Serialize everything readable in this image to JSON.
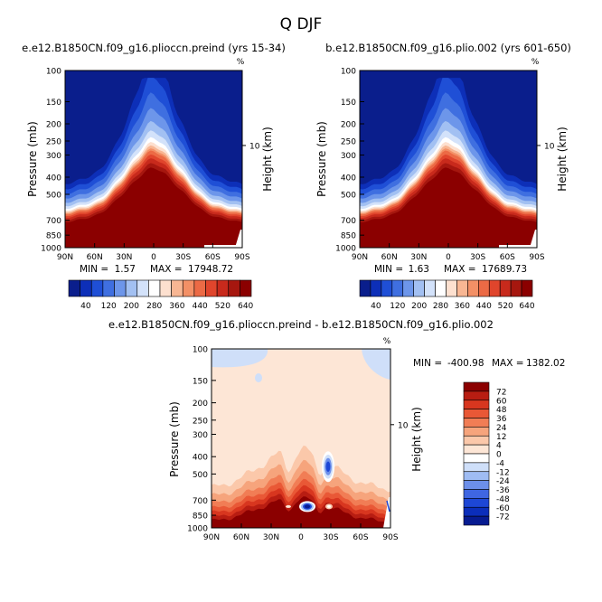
{
  "figure": {
    "title": "Q DJF"
  },
  "palette": {
    "full": [
      "#0a1e8c",
      "#0d2fb8",
      "#1f4fd6",
      "#3f6fe0",
      "#6d96ea",
      "#a2c0f2",
      "#d3e2fa",
      "#ffffff",
      "#fde0cf",
      "#f8b693",
      "#f39066",
      "#ec6a45",
      "#e0452c",
      "#c82a1c",
      "#a6170f",
      "#8b0000"
    ],
    "diff": [
      "#071b91",
      "#0b2ebb",
      "#1d47d6",
      "#3f66e2",
      "#6c8fea",
      "#9fbcf3",
      "#cfdff9",
      "#ffffff",
      "#fde6d6",
      "#fbc8aa",
      "#f6a47c",
      "#f17d55",
      "#e95836",
      "#d8361f",
      "#b81d12",
      "#8b0000"
    ]
  },
  "chart_data": [
    {
      "type": "heatmap",
      "title": "e.e12.B1850CN.f09_g16.plioccn.preind (yrs 15-34)",
      "ylabel": "Pressure (mb)",
      "y2label": "Height (km)",
      "y2_unit": "%",
      "x_ticks": [
        "90N",
        "60N",
        "30N",
        "0",
        "30S",
        "60S",
        "90S"
      ],
      "y_ticks": [
        100,
        150,
        200,
        250,
        300,
        400,
        500,
        700,
        850,
        1000
      ],
      "y2_ticks": [
        10
      ],
      "ylim": [
        1000,
        100
      ],
      "y_scale": "log",
      "min_label": "MIN =",
      "min_value": "1.57",
      "max_label": "MAX =",
      "max_value": "17948.72",
      "colorbar_labels": [
        "40",
        "120",
        "200",
        "280",
        "360",
        "440",
        "520",
        "640"
      ],
      "surface_pressure_by_lat": [
        [
          -90,
          1000
        ],
        [
          90,
          1000
        ]
      ],
      "peak_top_pressure": 300
    },
    {
      "type": "heatmap",
      "title": "b.e12.B1850CN.f09_g16.plio.002 (yrs 601-650)",
      "ylabel": "Pressure (mb)",
      "y2label": "Height (km)",
      "y2_unit": "%",
      "x_ticks": [
        "90N",
        "60N",
        "30N",
        "0",
        "30S",
        "60S",
        "90S"
      ],
      "y_ticks": [
        100,
        150,
        200,
        250,
        300,
        400,
        500,
        700,
        850,
        1000
      ],
      "y2_ticks": [
        10
      ],
      "ylim": [
        1000,
        100
      ],
      "y_scale": "log",
      "min_label": "MIN =",
      "min_value": "1.63",
      "max_label": "MAX =",
      "max_value": "17689.73",
      "colorbar_labels": [
        "40",
        "120",
        "200",
        "280",
        "360",
        "440",
        "520",
        "640"
      ],
      "peak_top_pressure": 300
    },
    {
      "type": "heatmap",
      "title": "e.e12.B1850CN.f09_g16.plioccn.preind - b.e12.B1850CN.f09_g16.plio.002",
      "ylabel": "Pressure (mb)",
      "y2label": "Height (km)",
      "y2_unit": "%",
      "x_ticks": [
        "90N",
        "60N",
        "30N",
        "0",
        "30S",
        "60S",
        "90S"
      ],
      "y_ticks": [
        100,
        150,
        200,
        250,
        300,
        400,
        500,
        700,
        850,
        1000
      ],
      "y2_ticks": [
        10
      ],
      "ylim": [
        1000,
        100
      ],
      "y_scale": "log",
      "min_label": "MIN = ",
      "min_value": "-400.98",
      "max_label": "MAX = ",
      "max_value": "1382.02",
      "colorbar_labels": [
        "72",
        "60",
        "48",
        "36",
        "24",
        "12",
        "4",
        "0",
        "-4",
        "-12",
        "-24",
        "-36",
        "-48",
        "-60",
        "-72"
      ]
    }
  ]
}
